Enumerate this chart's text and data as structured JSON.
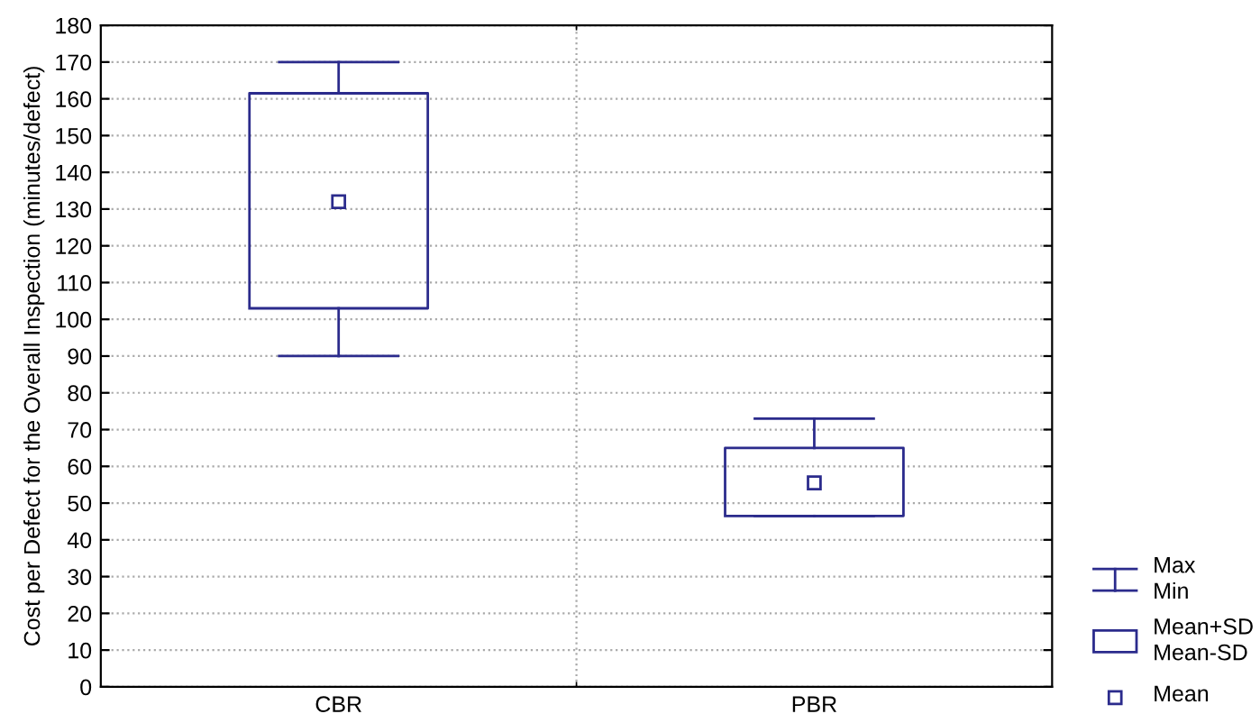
{
  "chart_data": {
    "type": "box",
    "ylabel": "Cost per Defect for the Overall Inspection (minutes/defect)",
    "categories": [
      "CBR",
      "PBR"
    ],
    "series": [
      {
        "color": "#2b2b8c",
        "boxes": [
          {
            "low": 90,
            "q1": 103,
            "q3": 161.5,
            "high": 170,
            "mean": 132
          },
          {
            "low": 46.5,
            "q1": 46.5,
            "q3": 65,
            "high": 73,
            "mean": 55.5
          }
        ]
      }
    ],
    "annotations": [
      "Max\nMin",
      "Mean+SD\nMean-SD",
      "Mean"
    ],
    "ylim": [
      0,
      180
    ],
    "yticks": [
      0,
      10,
      20,
      30,
      40,
      50,
      60,
      70,
      80,
      90,
      100,
      110,
      120,
      130,
      140,
      150,
      160,
      170,
      180
    ],
    "grid": true,
    "marker": "square"
  }
}
